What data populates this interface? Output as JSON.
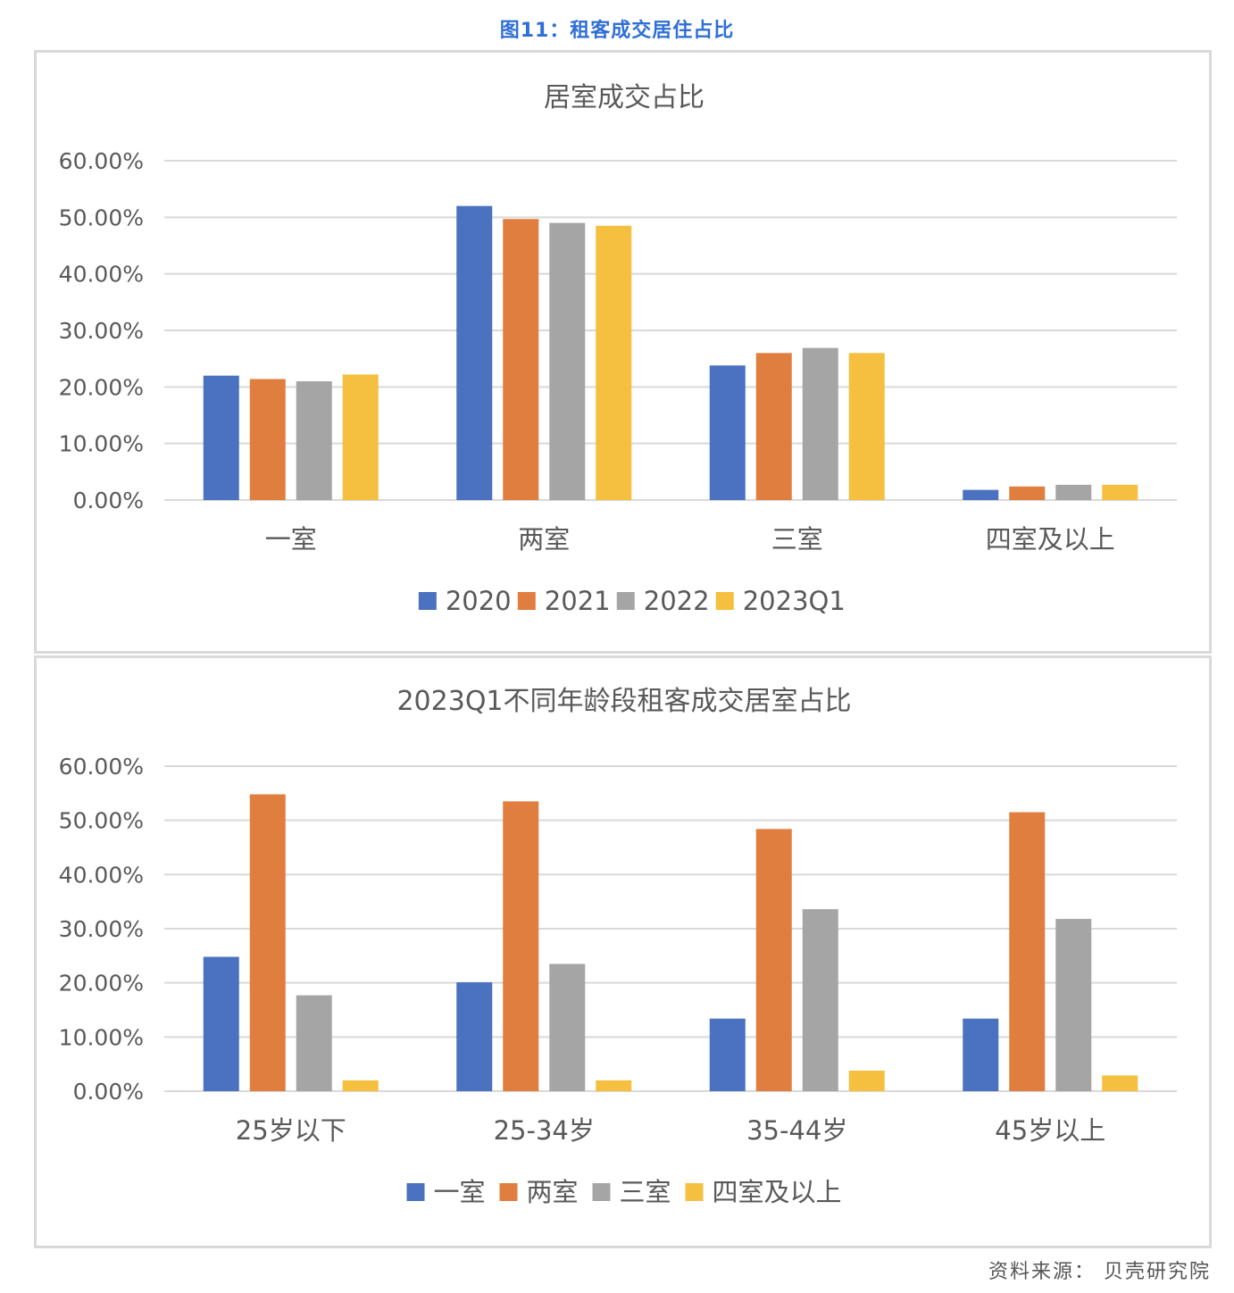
{
  "figure_title": "图11：租客成交居住占比",
  "source": "资料来源：  贝壳研究院",
  "colors": {
    "blue": "#4a72c0",
    "orange": "#e07e3f",
    "gray": "#a5a5a5",
    "yellow": "#f5bf3f",
    "grid": "#d9d9d9",
    "text": "#595959"
  },
  "chart_data": [
    {
      "type": "bar",
      "title": "居室成交占比",
      "categories": [
        "一室",
        "两室",
        "三室",
        "四室及以上"
      ],
      "y_ticks": [
        "0.00%",
        "10.00%",
        "20.00%",
        "30.00%",
        "40.00%",
        "50.00%",
        "60.00%"
      ],
      "ylim": [
        0,
        60
      ],
      "grid": true,
      "legend": "bottom",
      "series": [
        {
          "name": "2020",
          "color": "#4a72c0",
          "values": [
            22.0,
            52.0,
            23.8,
            1.8
          ]
        },
        {
          "name": "2021",
          "color": "#e07e3f",
          "values": [
            21.4,
            49.7,
            26.0,
            2.4
          ]
        },
        {
          "name": "2022",
          "color": "#a5a5a5",
          "values": [
            21.0,
            49.0,
            26.9,
            2.7
          ]
        },
        {
          "name": "2023Q1",
          "color": "#f5bf3f",
          "values": [
            22.2,
            48.5,
            26.0,
            2.7
          ]
        }
      ]
    },
    {
      "type": "bar",
      "title": "2023Q1不同年龄段租客成交居室占比",
      "categories": [
        "25岁以下",
        "25-34岁",
        "35-44岁",
        "45岁以上"
      ],
      "y_ticks": [
        "0.00%",
        "10.00%",
        "20.00%",
        "30.00%",
        "40.00%",
        "50.00%",
        "60.00%"
      ],
      "ylim": [
        0,
        60
      ],
      "grid": true,
      "legend": "bottom",
      "series": [
        {
          "name": "一室",
          "color": "#4a72c0",
          "values": [
            24.8,
            20.1,
            13.4,
            13.4
          ]
        },
        {
          "name": "两室",
          "color": "#e07e3f",
          "values": [
            54.8,
            53.5,
            48.4,
            51.5
          ]
        },
        {
          "name": "三室",
          "color": "#a5a5a5",
          "values": [
            17.7,
            23.5,
            33.6,
            31.8
          ]
        },
        {
          "name": "四室及以上",
          "color": "#f5bf3f",
          "values": [
            2.0,
            2.0,
            3.8,
            2.9
          ]
        }
      ]
    }
  ]
}
